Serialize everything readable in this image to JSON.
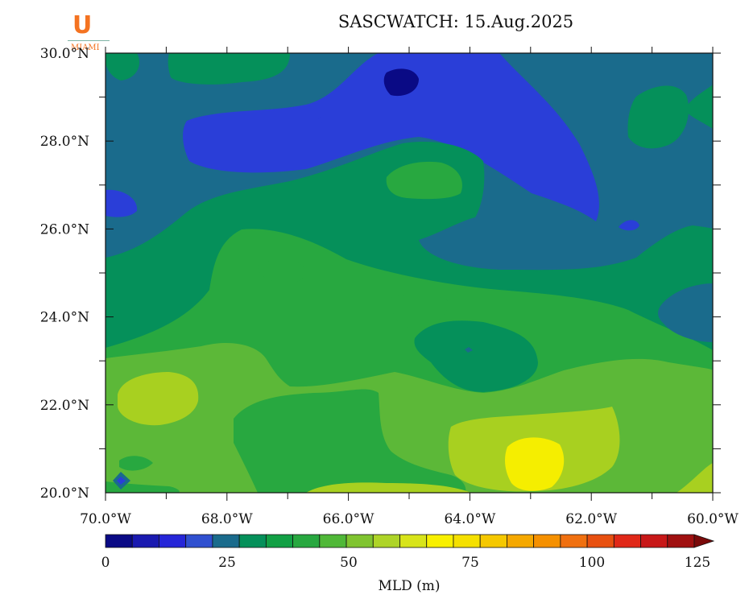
{
  "title": "SASCWATCH: 15.Aug.2025",
  "logo": {
    "letter": "U",
    "word": "MIAMI"
  },
  "y_ticks": [
    "20.0°N",
    "22.0°N",
    "24.0°N",
    "26.0°N",
    "28.0°N",
    "30.0°N"
  ],
  "x_ticks": [
    "70.0°W",
    "68.0°W",
    "66.0°W",
    "64.0°W",
    "62.0°W",
    "60.0°W"
  ],
  "colorbar": {
    "label": "MLD (m)",
    "ticks": [
      "0",
      "25",
      "50",
      "75",
      "100",
      "125"
    ],
    "colors": [
      "#0a0a85",
      "#1a1ab0",
      "#2626d8",
      "#3050d0",
      "#1a6b8c",
      "#05905a",
      "#12a045",
      "#28a840",
      "#50b838",
      "#80c430",
      "#aed428",
      "#d8e41a",
      "#f8f000",
      "#f5e000",
      "#f5c800",
      "#f5a800",
      "#f59000",
      "#f07010",
      "#e85010",
      "#e02818",
      "#c81818",
      "#a01010"
    ]
  },
  "chart_data": {
    "type": "heatmap",
    "title": "SASCWATCH: 15.Aug.2025",
    "colorbar_label": "MLD (m)",
    "x_range": [
      -70,
      -60
    ],
    "y_range": [
      20,
      30
    ],
    "value_range": [
      0,
      125
    ],
    "regions": [
      {
        "area": "north-central 28-30°N, 66-63°W",
        "mld_m": "5-15"
      },
      {
        "area": "northern band 27-29°N",
        "mld_m": "15-20"
      },
      {
        "area": "north / northeast",
        "mld_m": "20-25"
      },
      {
        "area": "band 25-26.5°N",
        "mld_m": "25-30"
      },
      {
        "area": "central 23-25°N",
        "mld_m": "30-40"
      },
      {
        "area": "southwest 21.5-23°N, 69-68°W",
        "mld_m": "45-50"
      },
      {
        "area": "south 20.5-21.5°N, 63.5-62°W",
        "mld_m": "55-65"
      },
      {
        "area": "east 23.5-24.5°N, 61-60°W",
        "mld_m": "20-25"
      }
    ]
  }
}
